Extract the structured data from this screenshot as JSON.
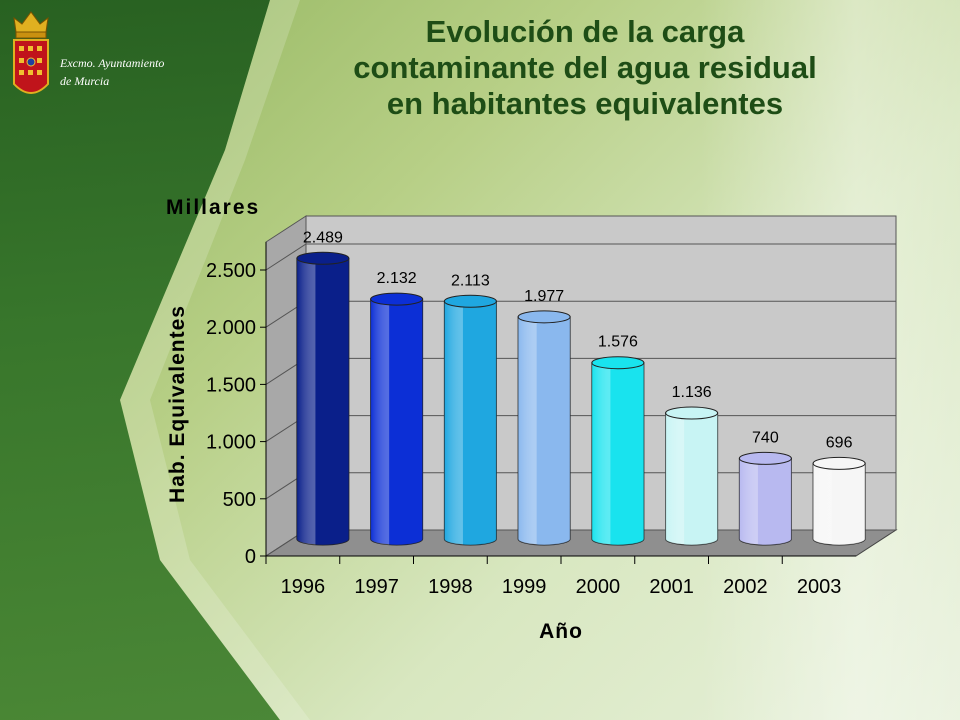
{
  "org": {
    "line1": "Excmo. Ayuntamiento",
    "line2": "de Murcia"
  },
  "title": {
    "line1": "Evolución de la carga",
    "line2": "contaminante del agua residual",
    "line3": "en habitantes equivalentes"
  },
  "colors": {
    "title": "#1e4d16",
    "bars": [
      "#0a1f8a",
      "#0c2fd6",
      "#1fa7e0",
      "#8ab8ee",
      "#19e3ee",
      "#c8f4f4",
      "#b8b9f0",
      "#f6f6f6"
    ]
  },
  "chart_data": {
    "type": "bar",
    "title": "",
    "unit_label": "Millares",
    "xlabel": "Año",
    "ylabel": "Hab. Equivalentes",
    "categories": [
      "1996",
      "1997",
      "1998",
      "1999",
      "2000",
      "2001",
      "2002",
      "2003"
    ],
    "values": [
      2489,
      2132,
      2113,
      1977,
      1576,
      1136,
      740,
      696
    ],
    "data_labels": [
      "2.489",
      "2.132",
      "2.113",
      "1.977",
      "1.576",
      "1.136",
      "740",
      "696"
    ],
    "ylim": [
      0,
      2500
    ],
    "yticks": [
      0,
      500,
      1000,
      1500,
      2000,
      2500
    ],
    "ytick_labels": [
      "0",
      "500",
      "1.000",
      "1.500",
      "2.000",
      "2.500"
    ],
    "grid": true,
    "legend": "none",
    "style": "3d-cylinder"
  }
}
